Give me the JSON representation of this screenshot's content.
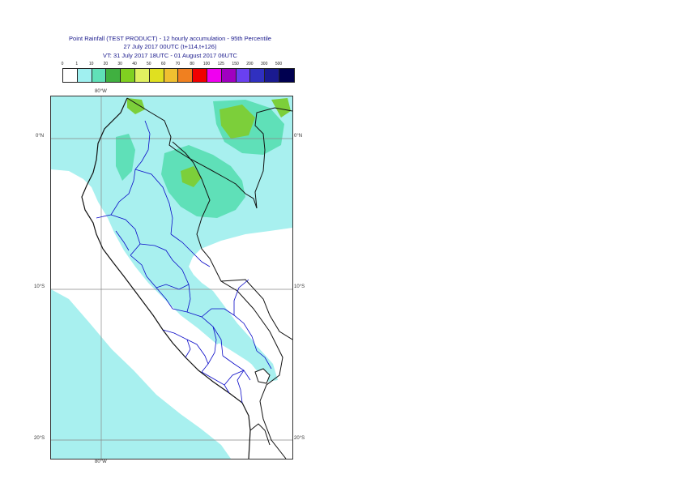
{
  "header": {
    "title": "Point Rainfall (TEST PRODUCT) - 12 hourly accumulation - 95th Percentile",
    "run": "27 July 2017 00UTC (t+114,t+126)",
    "valid": "VT: 31 July 2017 18UTC - 01 August 2017 06UTC"
  },
  "legend": {
    "thresholds": [
      "0",
      "1",
      "10",
      "20",
      "30",
      "40",
      "50",
      "60",
      "70",
      "80",
      "100",
      "125",
      "150",
      "200",
      "300",
      "500"
    ],
    "colors": [
      "#ffffff",
      "#a0f0f0",
      "#60e0b8",
      "#40b040",
      "#80d020",
      "#e0f060",
      "#e0e020",
      "#f0c030",
      "#f08020",
      "#f00000",
      "#f000f0",
      "#a000c0",
      "#6a40f0",
      "#3030c0",
      "#1a1a90",
      "#000050"
    ]
  },
  "map": {
    "lon_top_label": "80°W",
    "lon_bottom_label": "80°W",
    "lat_labels": {
      "equator": "0°N",
      "s10": "10°S",
      "s20": "20°S"
    },
    "colors": {
      "land_light": "#a8f0ef",
      "land_medium": "#5fe0b8",
      "land_high": "#7ccf3a",
      "border_country": "#111111",
      "border_region": "#0a0ac8",
      "graticule": "#888888"
    }
  }
}
